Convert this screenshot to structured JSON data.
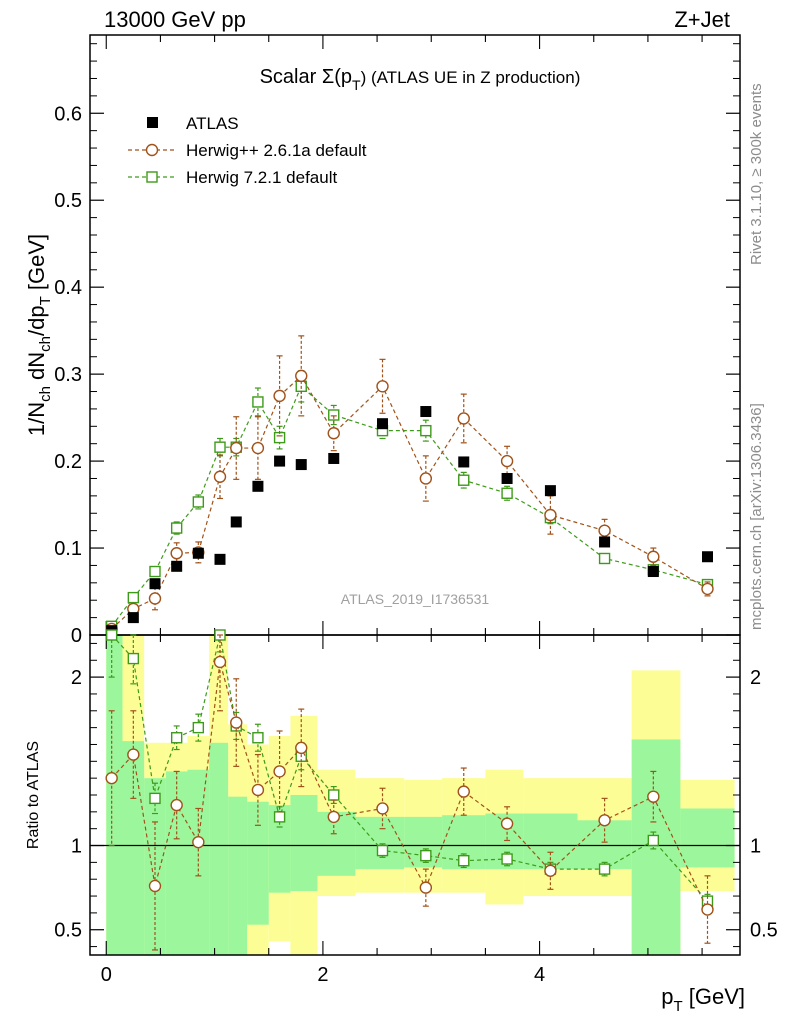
{
  "header": {
    "left_label": "13000 GeV pp",
    "right_label": "Z+Jet"
  },
  "side_labels": {
    "rivet": "Rivet 3.1.10, ≥ 300k events",
    "mcplots": "mcplots.cern.ch [arXiv:1306.3436]"
  },
  "colors": {
    "atlas": "#000000",
    "herwig_pp": "#a0521a",
    "herwig7": "#3e9a1a",
    "band_inner": "#9cf79c",
    "band_outer": "#fdfd96"
  },
  "chart_data": [
    {
      "type": "scatter",
      "id": "main",
      "title": "Scalar Σ(p_T) (ATLAS UE in Z production)",
      "title_parts": {
        "main": "Scalar Σ(p",
        "sub": "T",
        "tail": ")  (ATLAS UE in Z production)"
      },
      "ylabel": "1/N_ch dN_ch/dp_T [GeV]",
      "ylabel_parts": {
        "a": "1/N",
        "a_sub": "ch",
        "b": " dN",
        "b_sub": "ch",
        "c": "/dp",
        "c_sub": "T",
        "d": " [GeV]"
      },
      "xlim": [
        -0.15,
        5.85
      ],
      "ylim": [
        0,
        0.69
      ],
      "y_ticks": [
        0,
        0.1,
        0.2,
        0.3,
        0.4,
        0.5,
        0.6
      ],
      "y_tick_labels": [
        "0",
        "0.1",
        "0.2",
        "0.3",
        "0.4",
        "0.5",
        "0.6"
      ],
      "watermark": "ATLAS_2019_I1736531",
      "legend": [
        "ATLAS",
        "Herwig++ 2.6.1a default",
        "Herwig 7.2.1 default"
      ],
      "x": [
        0.05,
        0.25,
        0.45,
        0.65,
        0.85,
        1.05,
        1.2,
        1.4,
        1.6,
        1.8,
        2.1,
        2.55,
        2.95,
        3.3,
        3.7,
        4.1,
        4.6,
        5.05,
        5.55
      ],
      "bin_low": [
        0.0,
        0.15,
        0.35,
        0.55,
        0.75,
        0.95,
        1.125,
        1.3,
        1.5,
        1.7,
        1.95,
        2.3,
        2.75,
        3.1,
        3.5,
        3.85,
        4.35,
        4.85,
        5.3
      ],
      "bin_high": [
        0.15,
        0.35,
        0.55,
        0.75,
        0.95,
        1.125,
        1.3,
        1.5,
        1.7,
        1.95,
        2.3,
        2.75,
        3.1,
        3.5,
        3.85,
        4.35,
        4.85,
        5.3,
        5.8
      ],
      "series": [
        {
          "name": "ATLAS",
          "marker": "filled-square",
          "values": [
            0.005,
            0.02,
            0.059,
            0.079,
            0.094,
            0.087,
            0.13,
            0.171,
            0.2,
            0.196,
            0.203,
            0.243,
            0.257,
            0.199,
            0.18,
            0.166,
            0.107,
            0.073,
            0.09
          ]
        },
        {
          "name": "Herwig++ 2.6.1a default",
          "marker": "open-circle",
          "values": [
            0.007,
            0.03,
            0.042,
            0.094,
            0.095,
            0.182,
            0.215,
            0.215,
            0.275,
            0.298,
            0.232,
            0.286,
            0.18,
            0.249,
            0.2,
            0.138,
            0.12,
            0.09,
            0.053
          ],
          "errors": [
            0.004,
            0.005,
            0.013,
            0.012,
            0.012,
            0.025,
            0.036,
            0.036,
            0.046,
            0.046,
            0.02,
            0.031,
            0.026,
            0.028,
            0.017,
            0.022,
            0.013,
            0.01,
            0.008
          ]
        },
        {
          "name": "Herwig 7.2.1 default",
          "marker": "open-square",
          "values": [
            0.01,
            0.043,
            0.073,
            0.123,
            0.153,
            0.216,
            0.216,
            0.268,
            0.227,
            0.286,
            0.253,
            0.235,
            0.235,
            0.178,
            0.163,
            0.135,
            0.088,
            0.075,
            0.058
          ],
          "errors": [
            0.003,
            0.003,
            0.005,
            0.007,
            0.008,
            0.01,
            0.01,
            0.016,
            0.013,
            0.018,
            0.011,
            0.009,
            0.012,
            0.009,
            0.008,
            0.007,
            0.005,
            0.004,
            0.003
          ]
        }
      ]
    },
    {
      "type": "scatter",
      "id": "ratio",
      "ylabel": "Ratio to ATLAS",
      "xlabel": "p_T [GeV]",
      "xlabel_parts": {
        "main": "p",
        "sub": "T",
        "tail": " [GeV]"
      },
      "xlim": [
        -0.15,
        5.85
      ],
      "ylim": [
        0.35,
        2.25
      ],
      "y_ticks": [
        0.5,
        1,
        2
      ],
      "y_tick_labels": [
        "0.5",
        "1",
        "2"
      ],
      "x_ticks": [
        0,
        2,
        4
      ],
      "x_tick_labels": [
        "0",
        "2",
        "4"
      ],
      "reference_line": 1,
      "band_inner_low": [
        0.35,
        0.35,
        0.35,
        0.35,
        0.35,
        0.35,
        0.35,
        0.53,
        0.72,
        0.73,
        0.82,
        0.86,
        0.87,
        0.86,
        0.86,
        0.86,
        0.86,
        0.35,
        0.87
      ],
      "band_inner_high": [
        2.25,
        1.62,
        1.4,
        1.44,
        1.45,
        1.61,
        1.29,
        1.26,
        1.24,
        1.3,
        1.2,
        1.17,
        1.17,
        1.18,
        1.19,
        1.19,
        1.15,
        1.63,
        1.22
      ],
      "band_outer_low": [
        0.35,
        0.35,
        0.35,
        0.35,
        0.35,
        0.35,
        0.35,
        0.35,
        0.43,
        0.35,
        0.7,
        0.72,
        0.72,
        0.72,
        0.65,
        0.7,
        0.7,
        0.35,
        0.73
      ],
      "band_outer_high": [
        2.25,
        2.25,
        1.61,
        1.61,
        1.65,
        2.25,
        1.72,
        1.6,
        1.65,
        1.77,
        1.45,
        1.4,
        1.39,
        1.4,
        1.45,
        1.4,
        1.4,
        2.04,
        1.39
      ],
      "series": [
        {
          "name": "Herwig++ 2.6.1a default",
          "values": [
            1.4,
            1.54,
            0.76,
            1.24,
            1.02,
            2.09,
            1.73,
            1.33,
            1.44,
            1.58,
            1.17,
            1.22,
            0.75,
            1.32,
            1.13,
            0.85,
            1.15,
            1.29,
            0.62
          ],
          "errors": [
            0.4,
            0.26,
            0.38,
            0.2,
            0.2,
            0.29,
            0.26,
            0.21,
            0.24,
            0.23,
            0.1,
            0.12,
            0.11,
            0.14,
            0.1,
            0.11,
            0.13,
            0.15,
            0.2
          ]
        },
        {
          "name": "Herwig 7.2.1 default",
          "values": [
            2.25,
            2.11,
            1.28,
            1.64,
            1.7,
            2.25,
            1.71,
            1.64,
            1.17,
            1.53,
            1.3,
            0.97,
            0.94,
            0.91,
            0.92,
            0.86,
            0.86,
            1.03,
            0.67
          ],
          "errors": [
            0.25,
            0.15,
            0.09,
            0.07,
            0.08,
            0.1,
            0.08,
            0.08,
            0.06,
            0.08,
            0.05,
            0.04,
            0.04,
            0.04,
            0.04,
            0.04,
            0.04,
            0.05,
            0.04
          ]
        }
      ]
    }
  ]
}
